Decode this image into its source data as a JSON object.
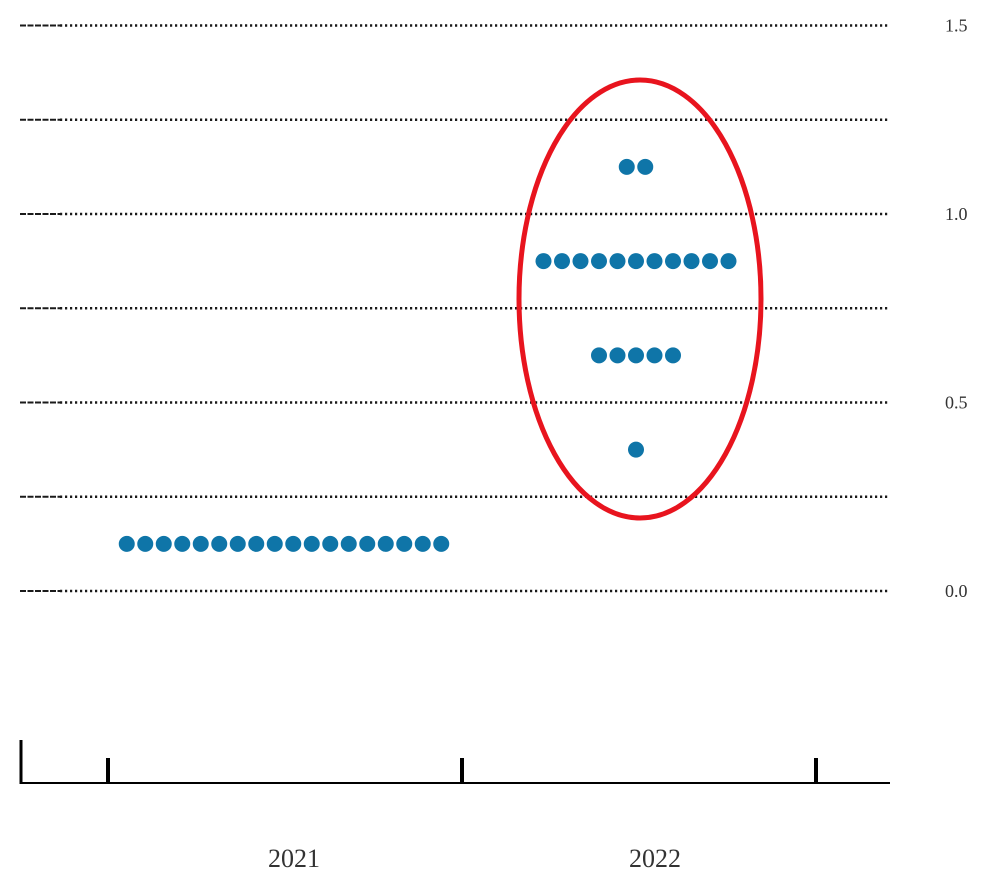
{
  "chart_data": {
    "type": "scatter",
    "title": "",
    "xlabel": "",
    "ylabel": "",
    "categories": [
      "2021",
      "2022"
    ],
    "ylim": [
      -0.35,
      1.55
    ],
    "yticks": [
      "0.0",
      "0.5",
      "1.0",
      "1.5"
    ],
    "grid": true,
    "gridlines": [
      0,
      0.25,
      0.5,
      0.75,
      1.0,
      1.25,
      1.5
    ],
    "series": [
      {
        "dots": [
          {
            "category": "2021",
            "value": 0.125,
            "count": 18
          },
          {
            "category": "2022",
            "value": 0.375,
            "count": 1
          },
          {
            "category": "2022",
            "value": 0.625,
            "count": 5
          },
          {
            "category": "2022",
            "value": 0.875,
            "count": 11
          },
          {
            "category": "2022",
            "value": 1.125,
            "count": 2
          }
        ]
      }
    ],
    "highlight": {
      "shape": "ellipse",
      "category": "2022",
      "color": "#e8141e"
    },
    "colors": {
      "dot": "#0f75a8",
      "grid": "#1a1a1a",
      "axis": "#000000",
      "highlight": "#e8141e"
    }
  }
}
